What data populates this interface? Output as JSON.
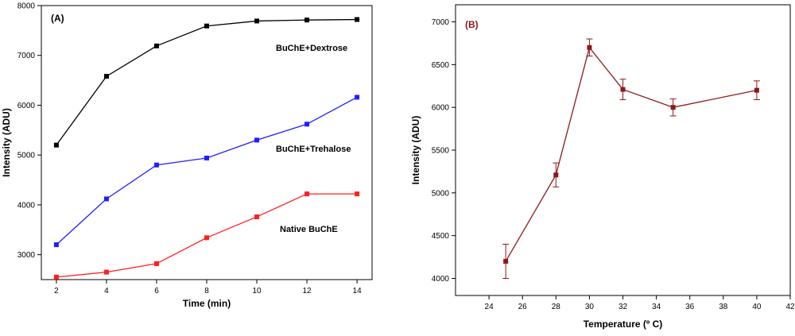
{
  "chart_data": [
    {
      "type": "line",
      "panel_label": "(A)",
      "xlabel": "Time (min)",
      "ylabel": "Intensity (ADU)",
      "xlim": [
        1.4,
        14.6
      ],
      "ylim": [
        2500,
        8000
      ],
      "xticks": [
        2,
        4,
        6,
        8,
        10,
        12,
        14
      ],
      "yticks": [
        3000,
        4000,
        5000,
        6000,
        7000,
        8000
      ],
      "grid": false,
      "x": [
        2,
        4,
        6,
        8,
        10,
        12,
        14
      ],
      "series": [
        {
          "name": "BuChE+Dextrose",
          "color": "#000000",
          "values": [
            5200,
            6580,
            7190,
            7590,
            7690,
            7710,
            7720
          ]
        },
        {
          "name": "BuChE+Trehalose",
          "color": "#1f1fff",
          "values": [
            3200,
            4120,
            4800,
            4940,
            5300,
            5620,
            6160
          ]
        },
        {
          "name": "Native BuChE",
          "color": "#ff1f1f",
          "values": [
            2550,
            2650,
            2820,
            3340,
            3760,
            4220,
            4220
          ]
        }
      ]
    },
    {
      "type": "line",
      "panel_label": "(B)",
      "xlabel": "Temperature (º C)",
      "ylabel": "Intensity (ADU)",
      "xlim": [
        22,
        42
      ],
      "ylim": [
        3800,
        7200
      ],
      "xticks": [
        24,
        26,
        28,
        30,
        32,
        34,
        36,
        38,
        40,
        42
      ],
      "yticks": [
        4000,
        4500,
        5000,
        5500,
        6000,
        6500,
        7000
      ],
      "grid": false,
      "color": "#8b1a1a",
      "x": [
        25,
        28,
        30,
        32,
        35,
        40
      ],
      "series": [
        {
          "values": [
            4200,
            5210,
            6700,
            6210,
            6000,
            6200
          ],
          "errors": [
            200,
            140,
            100,
            120,
            100,
            110
          ]
        }
      ]
    }
  ]
}
